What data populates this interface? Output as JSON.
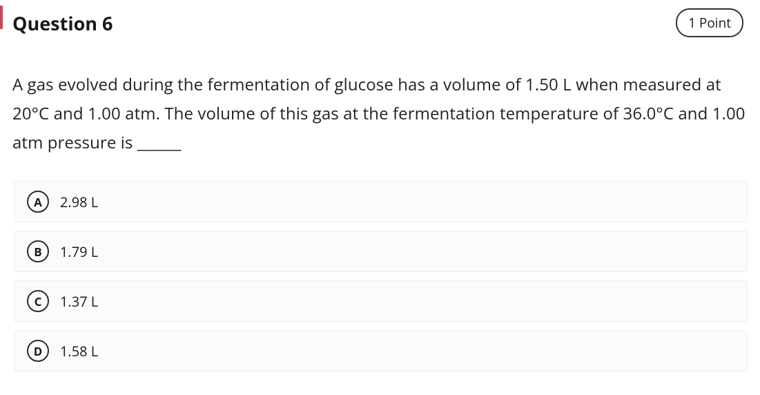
{
  "header": {
    "title": "Question 6",
    "points": "1 Point",
    "accent_color": "#cf4757"
  },
  "question": {
    "text": "A gas evolved during the fermentation of glucose has a volume of 1.50 L when measured at 20°C and 1.00 atm. The volume of this gas at the fermentation temperature of 36.0°C and 1.00 atm pressure is ______"
  },
  "options": [
    {
      "letter": "A",
      "text": "2.98 L"
    },
    {
      "letter": "B",
      "text": "1.79 L"
    },
    {
      "letter": "C",
      "text": "1.37 L"
    },
    {
      "letter": "D",
      "text": "1.58 L"
    }
  ],
  "styling": {
    "body_bg": "#ffffff",
    "text_color": "#1a1a1a",
    "option_bg": "#fbfbfb",
    "option_border": "#eeeeee",
    "letter_border": "#2b2b2b",
    "title_fontsize": 27,
    "question_fontsize": 24,
    "option_fontsize": 20,
    "badge_border": "#333333"
  }
}
